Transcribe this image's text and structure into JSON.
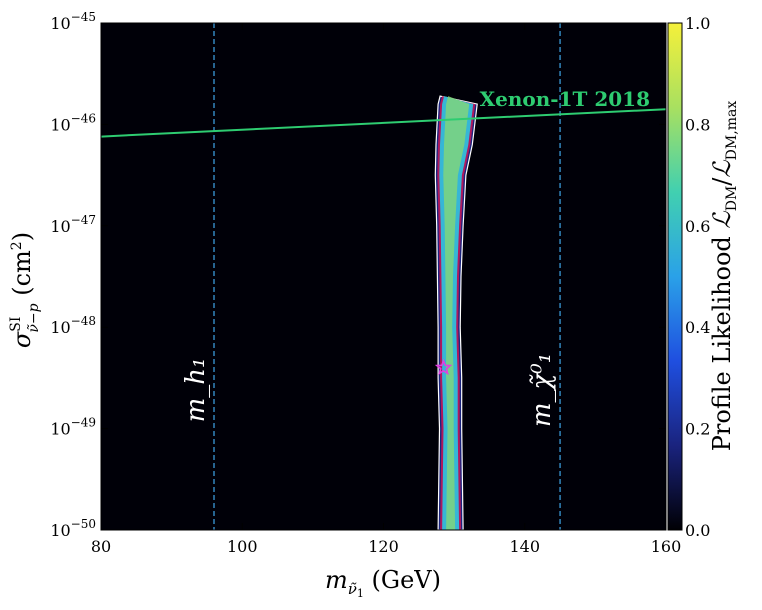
{
  "chart_data": {
    "type": "heatmap",
    "title": "",
    "xlabel": "m_ν̃₁ (GeV)",
    "ylabel": "σ^SI_ν̃−p (cm²)",
    "xlim": [
      80,
      160
    ],
    "ylim_log10": [
      -50,
      -45
    ],
    "yscale": "log",
    "x_ticks": [
      80,
      100,
      120,
      140,
      160
    ],
    "x_tick_labels": [
      "80",
      "100",
      "120",
      "140",
      "160"
    ],
    "y_ticks_log10": [
      -50,
      -49,
      -48,
      -47,
      -46,
      -45
    ],
    "y_tick_mantissa": "10",
    "y_tick_exponents": [
      "−50",
      "−49",
      "−48",
      "−47",
      "−46",
      "−45"
    ],
    "colorbar": {
      "label": "Profile Likelihood ℒ_DM/ℒ_DM,max",
      "range": [
        0.0,
        1.0
      ],
      "ticks": [
        "0.0",
        "0.2",
        "0.4",
        "0.6",
        "0.8",
        "1.0"
      ],
      "colormap": [
        "#000004",
        "#1a237e",
        "#1f4fe0",
        "#2aa1e8",
        "#41d0b0",
        "#a8e060",
        "#f5f03a"
      ]
    },
    "vertical_lines": [
      {
        "label": "m_h₁",
        "x": 96,
        "color": "#3a9ad9"
      },
      {
        "label": "m_χ̃⁰₁",
        "x": 145,
        "color": "#3a9ad9"
      }
    ],
    "limit_curve": {
      "label": "Xenon-1T 2018",
      "color": "#2ecc71",
      "x": [
        80,
        160
      ],
      "y_log10": [
        -46.12,
        -45.85
      ]
    },
    "likelihood_band": {
      "x_center": [
        129.5,
        129.5,
        129.5,
        129.4,
        129.3,
        129.3,
        129.4,
        129.5,
        130.0,
        130.5
      ],
      "y_log10": [
        -50.0,
        -49.5,
        -49.0,
        -48.5,
        -48.0,
        -47.5,
        -47.0,
        -46.5,
        -46.2,
        -45.8
      ],
      "half_width": [
        1.2,
        1.1,
        1.0,
        1.1,
        1.0,
        1.1,
        1.3,
        1.6,
        2.0,
        2.2
      ]
    },
    "best_fit_point": {
      "x": 128.5,
      "y_log10": -48.4,
      "marker": "star",
      "color": "#e040e0"
    },
    "grid": false
  }
}
